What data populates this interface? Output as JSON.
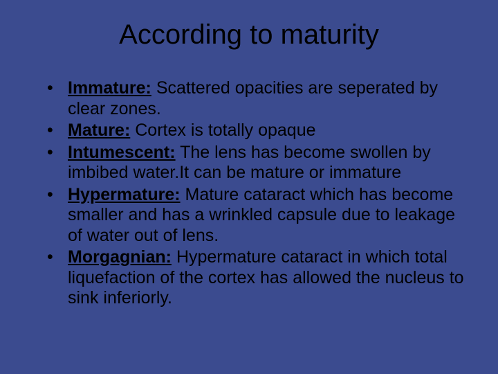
{
  "slide": {
    "background_color": "#3b4b8f",
    "text_color": "#000000",
    "title": "According to maturity",
    "title_fontsize": 40,
    "body_fontsize": 25,
    "bullets": [
      {
        "term": "Immature:",
        "desc": " Scattered opacities are seperated by clear zones."
      },
      {
        "term": "Mature:",
        "desc": " Cortex is totally opaque"
      },
      {
        "term": "Intumescent:",
        "desc": " The lens has become swollen by imbibed water.It can be mature or immature"
      },
      {
        "term": "Hypermature:",
        "desc": " Mature cataract which has become smaller and has a wrinkled capsule due to leakage of water out of lens."
      },
      {
        "term": "Morgagnian:",
        "desc": " Hypermature cataract in which total liquefaction of the cortex has allowed the nucleus to sink inferiorly."
      }
    ]
  }
}
